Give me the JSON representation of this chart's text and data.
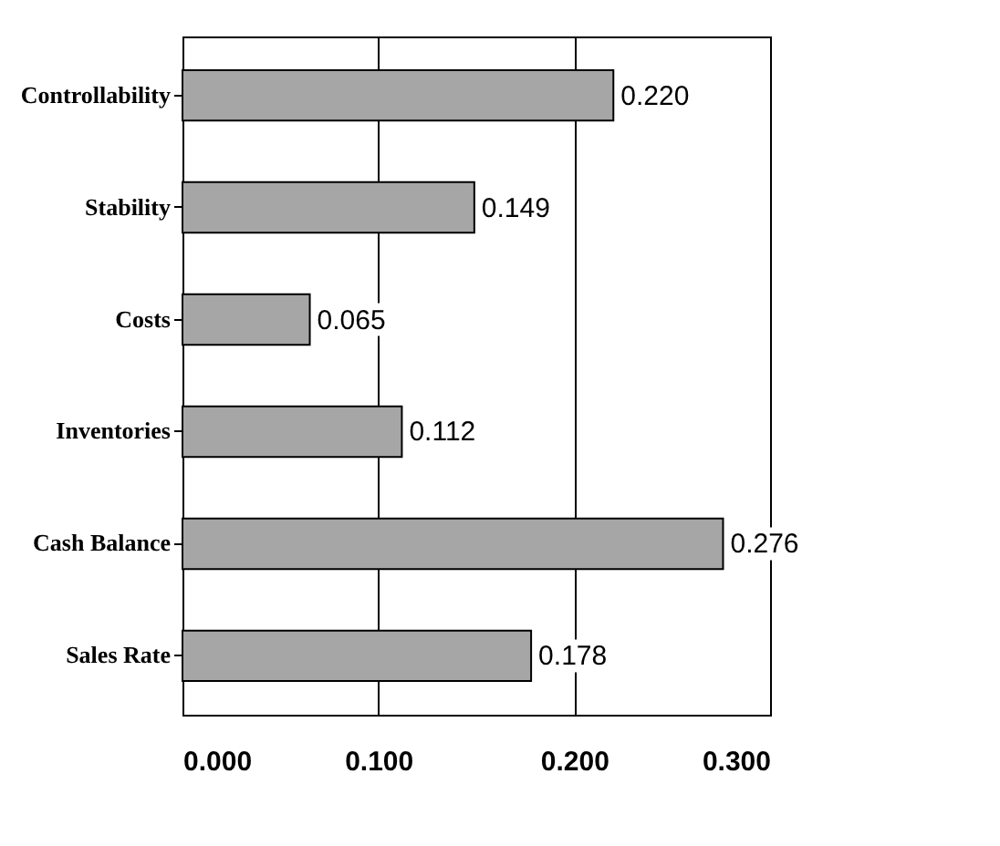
{
  "chart_data": {
    "type": "bar",
    "orientation": "horizontal",
    "categories": [
      "Controllability",
      "Stability",
      "Costs",
      "Inventories",
      "Cash Balance",
      "Sales Rate"
    ],
    "values": [
      0.22,
      0.149,
      0.065,
      0.112,
      0.276,
      0.178
    ],
    "value_labels": [
      "0.220",
      "0.149",
      "0.065",
      "0.112",
      "0.276",
      "0.178"
    ],
    "color": "#a6a6a6",
    "xlim": [
      0,
      0.3
    ],
    "xticks": [
      {
        "value": 0,
        "label": "0.000"
      },
      {
        "value": 0.1,
        "label": "0.100"
      },
      {
        "value": 0.2,
        "label": "0.200"
      },
      {
        "value": 0.3,
        "label": "0.300"
      }
    ],
    "grid": "x"
  }
}
